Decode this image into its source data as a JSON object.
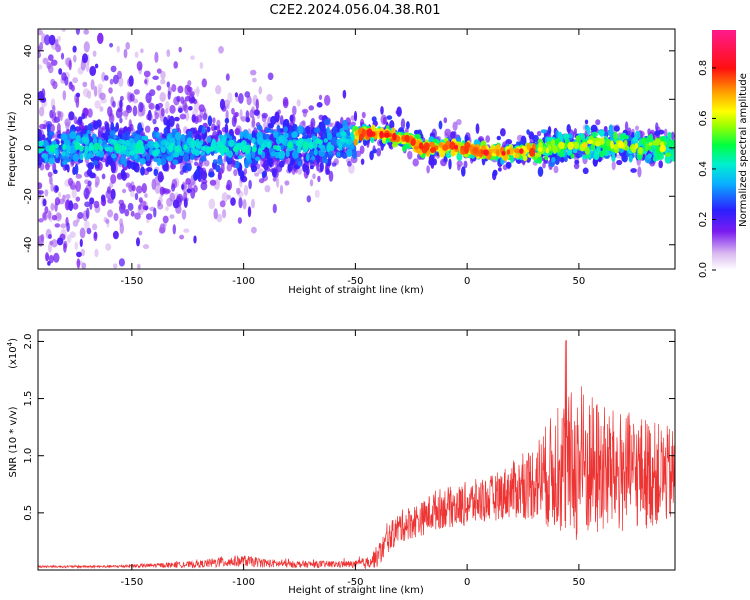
{
  "title": "C2E2.2024.056.04.38.R01",
  "chart_data": [
    {
      "type": "heatmap",
      "xlabel": "Height of straight line (km)",
      "ylabel": "Frequency (Hz)",
      "xlim": [
        -192,
        93
      ],
      "ylim": [
        -50,
        49
      ],
      "x_ticks": [
        -150,
        -100,
        -50,
        0,
        50
      ],
      "y_ticks": [
        -40,
        -20,
        0,
        20,
        40
      ],
      "ridge": {
        "x": [
          -192,
          -150,
          -100,
          -60,
          -50,
          -45,
          -40,
          -35,
          -30,
          -25,
          -22,
          -20,
          -15,
          -10,
          0,
          5,
          10,
          20,
          30,
          40,
          50,
          60,
          70,
          80,
          93
        ],
        "y": [
          0,
          0,
          0,
          2,
          4,
          6,
          6,
          5,
          4,
          3,
          1,
          0,
          0,
          0,
          0,
          -1,
          -2,
          -2,
          -1,
          0,
          1,
          2,
          1,
          0,
          0
        ]
      },
      "colorbar": {
        "label": "Normalized spectral amplitude",
        "range": [
          0,
          0.95
        ],
        "ticks": [
          "0.0",
          "0.2",
          "0.4",
          "0.6",
          "0.8"
        ],
        "tick_values": [
          0.0,
          0.2,
          0.4,
          0.6,
          0.8
        ]
      }
    },
    {
      "type": "line",
      "xlabel": "Height of straight line (km)",
      "ylabel": "SNR (10 * v/v)",
      "scale_label": "(x10",
      "scale_exp": "4",
      "xlim": [
        -192,
        93
      ],
      "ylim": [
        0,
        2.1
      ],
      "x_ticks": [
        -150,
        -100,
        -50,
        0,
        50
      ],
      "y_ticks": [
        "0.5",
        "1.0",
        "1.5",
        "2.0"
      ],
      "y_tick_values": [
        0.5,
        1.0,
        1.5,
        2.0
      ],
      "series": [
        {
          "name": "SNR",
          "color": "#ee3333",
          "x": [
            -192,
            -160,
            -140,
            -120,
            -110,
            -100,
            -90,
            -80,
            -70,
            -60,
            -50,
            -45,
            -40,
            -35,
            -30,
            -25,
            -20,
            -15,
            -10,
            -5,
            0,
            5,
            10,
            15,
            20,
            25,
            30,
            35,
            40,
            45,
            50,
            55,
            60,
            65,
            70,
            75,
            80,
            85,
            93
          ],
          "mean": [
            0.03,
            0.03,
            0.04,
            0.05,
            0.07,
            0.08,
            0.06,
            0.05,
            0.05,
            0.05,
            0.05,
            0.06,
            0.12,
            0.28,
            0.38,
            0.42,
            0.45,
            0.52,
            0.55,
            0.55,
            0.58,
            0.6,
            0.62,
            0.66,
            0.7,
            0.72,
            0.78,
            0.82,
            0.88,
            0.9,
            0.92,
            0.9,
            0.88,
            0.86,
            0.85,
            0.86,
            0.85,
            0.84,
            0.82
          ],
          "amp": [
            0.01,
            0.01,
            0.02,
            0.03,
            0.05,
            0.05,
            0.04,
            0.03,
            0.03,
            0.03,
            0.03,
            0.05,
            0.1,
            0.12,
            0.14,
            0.15,
            0.15,
            0.18,
            0.18,
            0.18,
            0.2,
            0.2,
            0.2,
            0.22,
            0.25,
            0.28,
            0.35,
            0.45,
            0.55,
            0.65,
            0.7,
            0.65,
            0.6,
            0.55,
            0.55,
            0.5,
            0.5,
            0.45,
            0.42
          ]
        }
      ]
    }
  ]
}
